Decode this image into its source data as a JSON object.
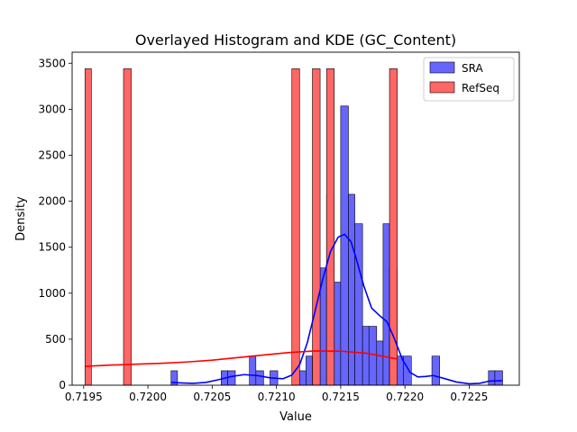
{
  "chart_data": {
    "type": "bar",
    "title": "Overlayed Histogram and KDE (GC_Content)",
    "xlabel": "Value",
    "ylabel": "Density",
    "xlim": [
      0.71941,
      0.72289
    ],
    "ylim": [
      0,
      3620
    ],
    "xticks": [
      0.7195,
      0.72,
      0.7205,
      0.721,
      0.7215,
      0.722,
      0.7225
    ],
    "yticks": [
      0,
      500,
      1000,
      1500,
      2000,
      2500,
      3000,
      3500
    ],
    "grid": false,
    "legend_position": "top-right",
    "series": [
      {
        "name": "SRA",
        "color": "#0000ff",
        "fill": "#6666ff",
        "bars": [
          {
            "x0": 0.72018,
            "x1": 0.72023,
            "y": 157
          },
          {
            "x0": 0.72057,
            "x1": 0.72062,
            "y": 157
          },
          {
            "x0": 0.72062,
            "x1": 0.72068,
            "y": 157
          },
          {
            "x0": 0.72079,
            "x1": 0.72084,
            "y": 316
          },
          {
            "x0": 0.72084,
            "x1": 0.7209,
            "y": 157
          },
          {
            "x0": 0.72095,
            "x1": 0.72101,
            "y": 157
          },
          {
            "x0": 0.72117,
            "x1": 0.72123,
            "y": 157
          },
          {
            "x0": 0.72123,
            "x1": 0.72128,
            "y": 316
          },
          {
            "x0": 0.72128,
            "x1": 0.72134,
            "y": 316
          },
          {
            "x0": 0.72134,
            "x1": 0.72139,
            "y": 1275
          },
          {
            "x0": 0.72139,
            "x1": 0.72145,
            "y": 2075
          },
          {
            "x0": 0.72145,
            "x1": 0.7215,
            "y": 1120
          },
          {
            "x0": 0.7215,
            "x1": 0.72156,
            "y": 3035
          },
          {
            "x0": 0.72156,
            "x1": 0.72161,
            "y": 2075
          },
          {
            "x0": 0.72161,
            "x1": 0.72167,
            "y": 1755
          },
          {
            "x0": 0.72167,
            "x1": 0.72172,
            "y": 640
          },
          {
            "x0": 0.72172,
            "x1": 0.72178,
            "y": 640
          },
          {
            "x0": 0.72178,
            "x1": 0.72183,
            "y": 480
          },
          {
            "x0": 0.72183,
            "x1": 0.72188,
            "y": 1755
          },
          {
            "x0": 0.72188,
            "x1": 0.72194,
            "y": 1275
          },
          {
            "x0": 0.72194,
            "x1": 0.72199,
            "y": 316
          },
          {
            "x0": 0.72199,
            "x1": 0.72205,
            "y": 316
          },
          {
            "x0": 0.72221,
            "x1": 0.72227,
            "y": 316
          },
          {
            "x0": 0.72265,
            "x1": 0.7227,
            "y": 157
          },
          {
            "x0": 0.7227,
            "x1": 0.72276,
            "y": 157
          }
        ],
        "kde": {
          "x": [
            0.72018,
            0.72025,
            0.72035,
            0.72045,
            0.72055,
            0.72065,
            0.72075,
            0.72085,
            0.72095,
            0.72105,
            0.72112,
            0.72118,
            0.72124,
            0.7213,
            0.72136,
            0.72142,
            0.72148,
            0.72153,
            0.72158,
            0.72162,
            0.72168,
            0.72174,
            0.7218,
            0.72186,
            0.72192,
            0.72198,
            0.72204,
            0.7221,
            0.72216,
            0.72222,
            0.7223,
            0.7224,
            0.7225,
            0.72258,
            0.72266,
            0.72276
          ],
          "y": [
            30,
            25,
            20,
            30,
            60,
            95,
            115,
            105,
            80,
            70,
            110,
            220,
            460,
            800,
            1150,
            1450,
            1610,
            1640,
            1560,
            1380,
            1080,
            840,
            760,
            690,
            500,
            280,
            140,
            90,
            95,
            105,
            75,
            35,
            15,
            20,
            45,
            50
          ]
        }
      },
      {
        "name": "RefSeq",
        "color": "#ff0000",
        "fill": "#ff6666",
        "bars": [
          {
            "x0": 0.71951,
            "x1": 0.71956,
            "y": 3440
          },
          {
            "x0": 0.71981,
            "x1": 0.71987,
            "y": 3440
          },
          {
            "x0": 0.72112,
            "x1": 0.72118,
            "y": 3440
          },
          {
            "x0": 0.72128,
            "x1": 0.72134,
            "y": 3440
          },
          {
            "x0": 0.72139,
            "x1": 0.72145,
            "y": 3440
          },
          {
            "x0": 0.72188,
            "x1": 0.72194,
            "y": 3440
          }
        ],
        "kde": {
          "x": [
            0.71951,
            0.7197,
            0.7199,
            0.7201,
            0.7203,
            0.7205,
            0.7207,
            0.7209,
            0.7211,
            0.7213,
            0.7215,
            0.7217,
            0.72194
          ],
          "y": [
            205,
            218,
            228,
            238,
            252,
            272,
            300,
            328,
            355,
            372,
            370,
            348,
            285
          ]
        }
      }
    ]
  }
}
